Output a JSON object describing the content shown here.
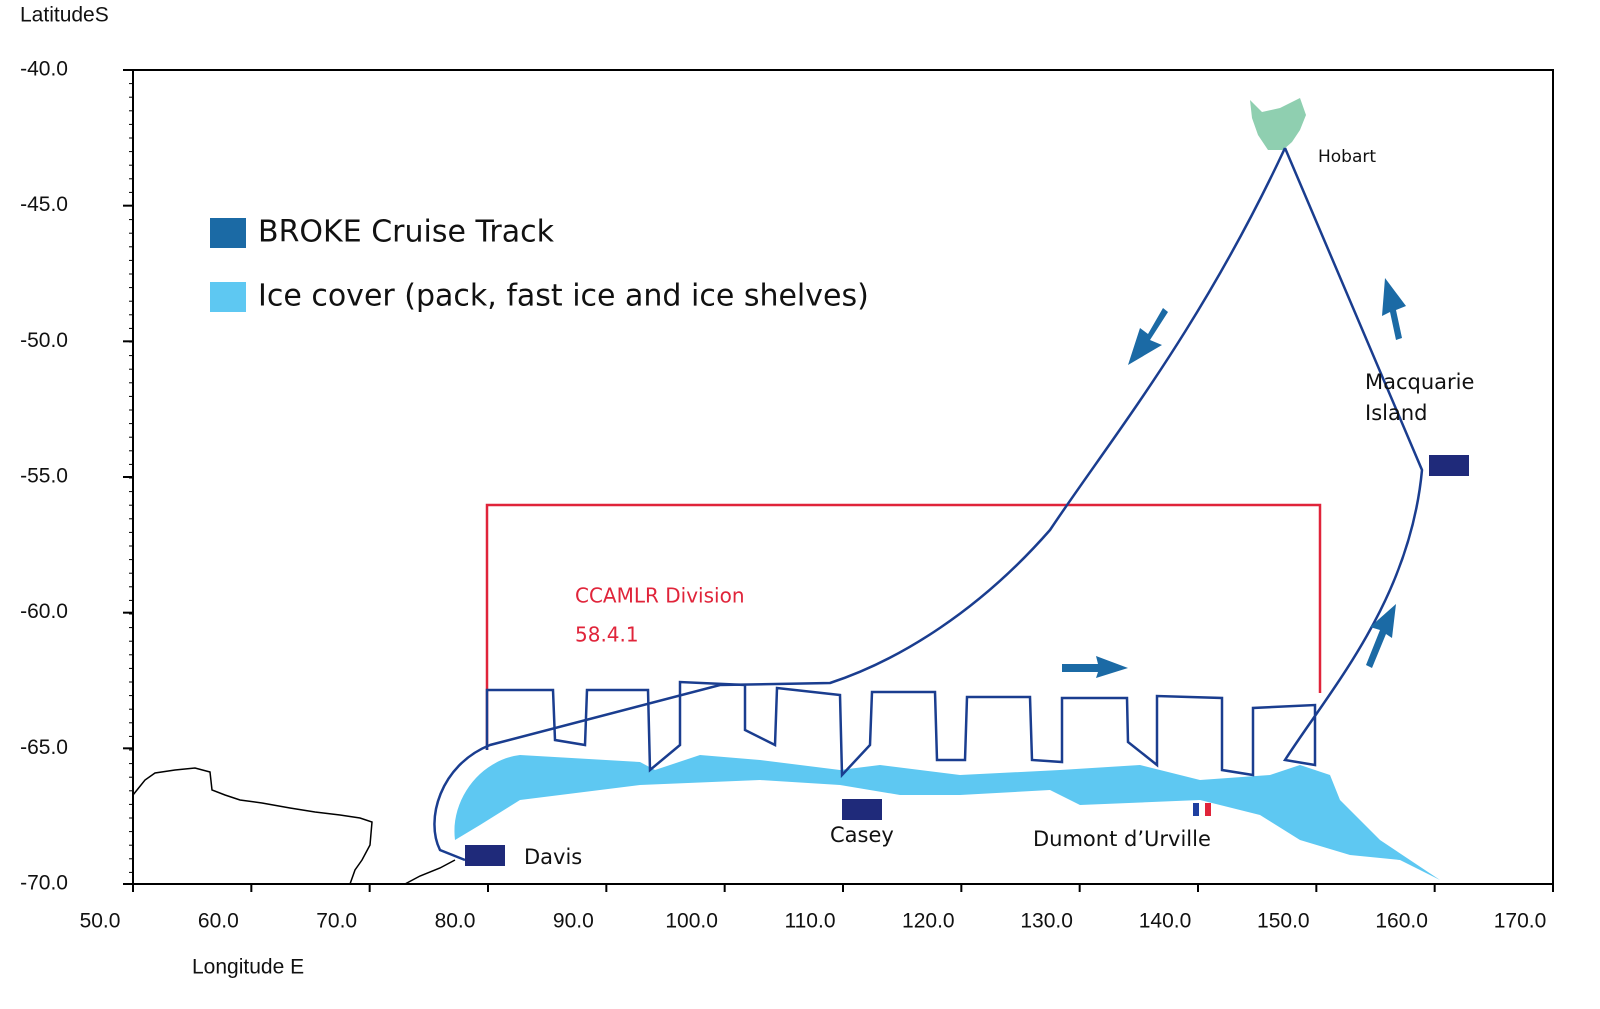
{
  "axes": {
    "y_title": "LatitudeS",
    "x_title": "Longitude E",
    "xlim": [
      50,
      170
    ],
    "ylim": [
      -70,
      -40
    ],
    "xticks": [
      {
        "value": 50,
        "label": "50.0"
      },
      {
        "value": 60,
        "label": "60.0"
      },
      {
        "value": 70,
        "label": "70.0"
      },
      {
        "value": 80,
        "label": "80.0"
      },
      {
        "value": 90,
        "label": "90.0"
      },
      {
        "value": 100,
        "label": "100.0"
      },
      {
        "value": 110,
        "label": "110.0"
      },
      {
        "value": 120,
        "label": "120.0"
      },
      {
        "value": 130,
        "label": "130.0"
      },
      {
        "value": 140,
        "label": "140.0"
      },
      {
        "value": 150,
        "label": "150.0"
      },
      {
        "value": 160,
        "label": "160.0"
      },
      {
        "value": 170,
        "label": "170.0"
      }
    ],
    "yticks": [
      {
        "value": -40,
        "label": "-40.0"
      },
      {
        "value": -45,
        "label": "-45.0"
      },
      {
        "value": -50,
        "label": "-50.0"
      },
      {
        "value": -55,
        "label": "-55.0"
      },
      {
        "value": -60,
        "label": "-60.0"
      },
      {
        "value": -65,
        "label": "-65.0"
      },
      {
        "value": -70,
        "label": "-70.0"
      }
    ]
  },
  "legend": [
    {
      "name": "BROKE Cruise Track",
      "color": "#1b6aa5"
    },
    {
      "name": "Ice cover (pack, fast ice and ice shelves)",
      "color": "#5ec8f2"
    }
  ],
  "places": {
    "hobart": "Hobart",
    "macquarie": [
      "Macquarie",
      "Island"
    ],
    "davis": "Davis",
    "casey": "Casey",
    "dumont": "Dumont d’Urville"
  },
  "division": [
    "CCAMLR Division",
    "58.4.1"
  ]
}
